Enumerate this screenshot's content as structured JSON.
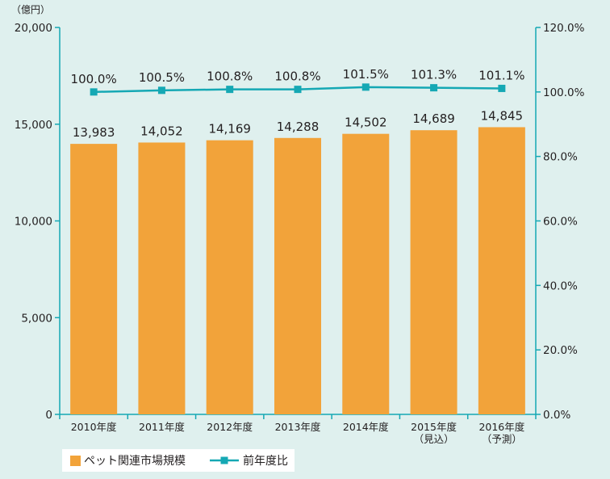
{
  "chart_data": {
    "type": "bar",
    "categories": [
      [
        "2010年度"
      ],
      [
        "2011年度"
      ],
      [
        "2012年度"
      ],
      [
        "2013年度"
      ],
      [
        "2014年度"
      ],
      [
        "2015年度",
        "（見込）"
      ],
      [
        "2016年度",
        "（予測）"
      ]
    ],
    "left_axis": {
      "unit": "（億円）",
      "ylim": [
        0,
        20000
      ],
      "ticks": [
        "0",
        "5,000",
        "10,000",
        "15,000",
        "20,000"
      ],
      "tick_values": [
        0,
        5000,
        10000,
        15000,
        20000
      ]
    },
    "right_axis": {
      "ylim": [
        0,
        120
      ],
      "ticks": [
        "0.0%",
        "20.0%",
        "40.0%",
        "60.0%",
        "80.0%",
        "100.0%",
        "120.0%"
      ],
      "tick_values": [
        0,
        20,
        40,
        60,
        80,
        100,
        120
      ]
    },
    "series": [
      {
        "name": "ペット関連市場規模",
        "type": "bar",
        "axis": "left",
        "color": "#f2a33a",
        "values": [
          13983,
          14052,
          14169,
          14288,
          14502,
          14689,
          14845
        ],
        "labels": [
          "13,983",
          "14,052",
          "14,169",
          "14,288",
          "14,502",
          "14,689",
          "14,845"
        ]
      },
      {
        "name": "前年度比",
        "type": "line",
        "axis": "right",
        "color": "#15a8b4",
        "values": [
          100.0,
          100.5,
          100.8,
          100.8,
          101.5,
          101.3,
          101.1
        ],
        "labels": [
          "100.0%",
          "100.5%",
          "100.8%",
          "100.8%",
          "101.5%",
          "101.3%",
          "101.1%"
        ]
      }
    ],
    "grid": false,
    "legend_position": "bottom-left"
  },
  "colors": {
    "background": "#dff0ee",
    "axis": "#15a8b4",
    "bar": "#f2a33a",
    "line": "#15a8b4",
    "legend_box": "#ffffff"
  }
}
